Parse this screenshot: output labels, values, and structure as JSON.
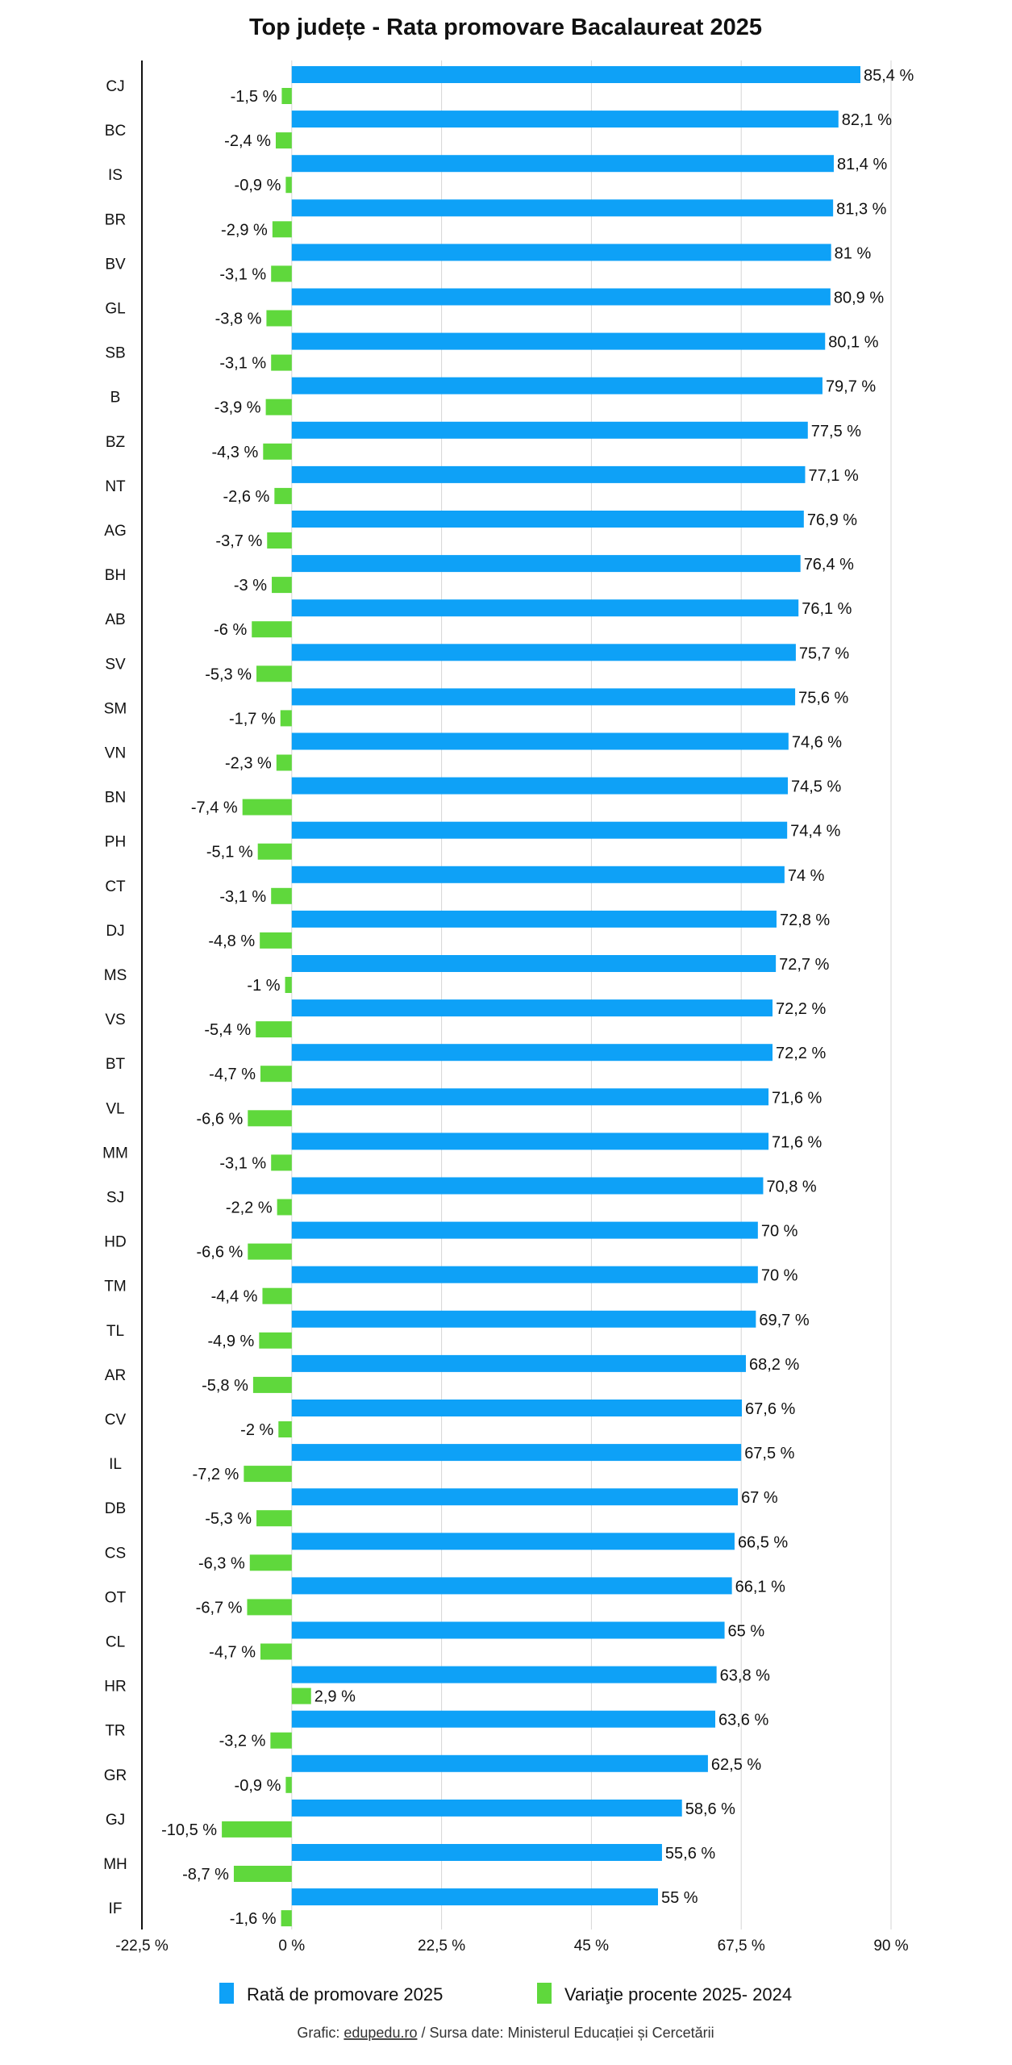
{
  "chart_data": {
    "type": "bar",
    "orientation": "horizontal",
    "title": "Top județe - Rata promovare Bacalaureat 2025",
    "categories": [
      "CJ",
      "BC",
      "IS",
      "BR",
      "BV",
      "GL",
      "SB",
      "B",
      "BZ",
      "NT",
      "AG",
      "BH",
      "AB",
      "SV",
      "SM",
      "VN",
      "BN",
      "PH",
      "CT",
      "DJ",
      "MS",
      "VS",
      "BT",
      "VL",
      "MM",
      "SJ",
      "HD",
      "TM",
      "TL",
      "AR",
      "CV",
      "IL",
      "DB",
      "CS",
      "OT",
      "CL",
      "HR",
      "TR",
      "GR",
      "GJ",
      "MH",
      "IF"
    ],
    "series": [
      {
        "name": "Rată de promovare 2025",
        "color": "#0ea1f7",
        "values": [
          85.4,
          82.1,
          81.4,
          81.3,
          81,
          80.9,
          80.1,
          79.7,
          77.5,
          77.1,
          76.9,
          76.4,
          76.1,
          75.7,
          75.6,
          74.6,
          74.5,
          74.4,
          74,
          72.8,
          72.7,
          72.2,
          72.2,
          71.6,
          71.6,
          70.8,
          70,
          70,
          69.7,
          68.2,
          67.6,
          67.5,
          67,
          66.5,
          66.1,
          65,
          63.8,
          63.6,
          62.5,
          58.6,
          55.6,
          55
        ]
      },
      {
        "name": "Variaţie procente 2025- 2024",
        "color": "#5fd83c",
        "values": [
          -1.5,
          -2.4,
          -0.9,
          -2.9,
          -3.1,
          -3.8,
          -3.1,
          -3.9,
          -4.3,
          -2.6,
          -3.7,
          -3,
          -6,
          -5.3,
          -1.7,
          -2.3,
          -7.4,
          -5.1,
          -3.1,
          -4.8,
          -1,
          -5.4,
          -4.7,
          -6.6,
          -3.1,
          -2.2,
          -6.6,
          -4.4,
          -4.9,
          -5.8,
          -2,
          -7.2,
          -5.3,
          -6.3,
          -6.7,
          -4.7,
          2.9,
          -3.2,
          -0.9,
          -10.5,
          -8.7,
          -1.6
        ]
      }
    ],
    "xlim": [
      -22.5,
      90
    ],
    "xticks": [
      -22.5,
      0,
      22.5,
      45,
      67.5,
      90
    ],
    "xtick_labels": [
      "-22,5 %",
      "0 %",
      "22,5 %",
      "45 %",
      "67,5 %",
      "90 %"
    ],
    "grid": true,
    "legend_position": "bottom"
  },
  "footer": {
    "prefix": "Grafic: ",
    "link": "edupedu.ro",
    "suffix": " / Sursa date: Ministerul Educației și Cercetării"
  }
}
